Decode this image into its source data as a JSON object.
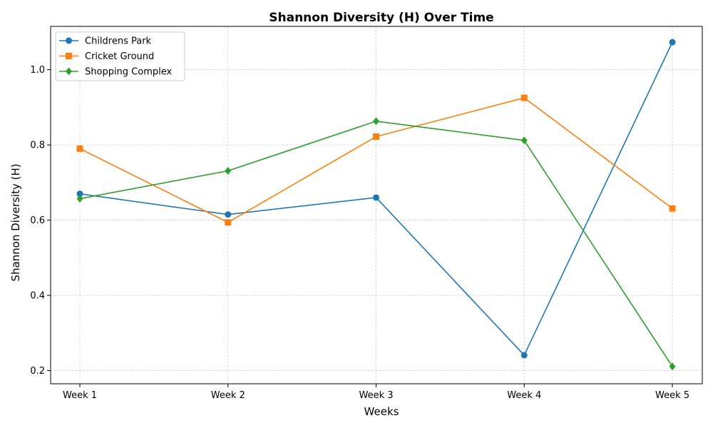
{
  "chart_data": {
    "type": "line",
    "title": "Shannon Diversity (H) Over Time",
    "xlabel": "Weeks",
    "ylabel": "Shannon Diversity (H)",
    "categories": [
      "Week 1",
      "Week 2",
      "Week 3",
      "Week 4",
      "Week 5"
    ],
    "ylim": [
      0.165,
      1.115
    ],
    "yticks": [
      0.2,
      0.4,
      0.6,
      0.8,
      1.0
    ],
    "ytick_labels": [
      "0.2",
      "0.4",
      "0.6",
      "0.8",
      "1.0"
    ],
    "grid": true,
    "legend_position": "top-left",
    "series": [
      {
        "name": "Childrens Park",
        "color": "#1f77b4",
        "marker": "circle",
        "values": [
          0.67,
          0.615,
          0.66,
          0.241,
          1.073
        ]
      },
      {
        "name": "Cricket Ground",
        "color": "#ff7f0e",
        "marker": "square",
        "values": [
          0.79,
          0.594,
          0.822,
          0.925,
          0.631
        ]
      },
      {
        "name": "Shopping Complex",
        "color": "#2ca02c",
        "marker": "diamond",
        "values": [
          0.657,
          0.731,
          0.863,
          0.812,
          0.211
        ]
      }
    ]
  }
}
